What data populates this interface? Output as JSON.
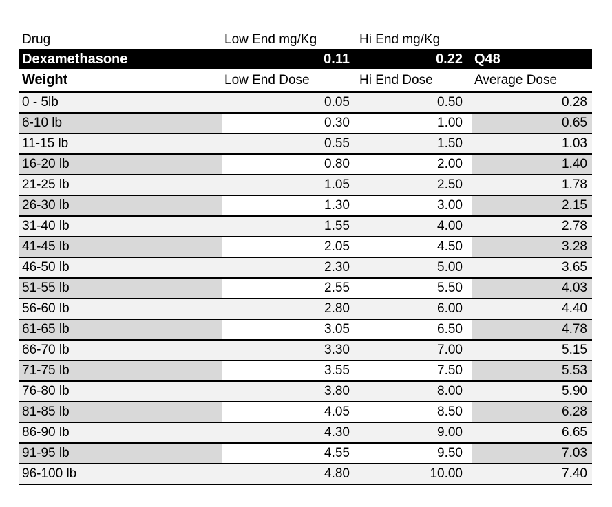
{
  "table": {
    "columns_header": {
      "drug_label": "Drug",
      "low_end_mg_kg_label": "Low End mg/Kg",
      "hi_end_mg_kg_label": "Hi End mg/Kg"
    },
    "drug_row": {
      "name": "Dexamethasone",
      "low_end_mg_kg": "0.11",
      "hi_end_mg_kg": "0.22",
      "frequency": "Q48"
    },
    "dose_header": {
      "weight_label": "Weight",
      "low_end_dose_label": "Low End Dose",
      "hi_end_dose_label": "Hi End Dose",
      "average_dose_label": "Average Dose"
    },
    "rows": [
      {
        "weight": "0 - 5lb",
        "low_end_dose": "0.05",
        "hi_end_dose": "0.50",
        "average_dose": "0.28"
      },
      {
        "weight": "6-10 lb",
        "low_end_dose": "0.30",
        "hi_end_dose": "1.00",
        "average_dose": "0.65"
      },
      {
        "weight": "11-15 lb",
        "low_end_dose": "0.55",
        "hi_end_dose": "1.50",
        "average_dose": "1.03"
      },
      {
        "weight": "16-20 lb",
        "low_end_dose": "0.80",
        "hi_end_dose": "2.00",
        "average_dose": "1.40"
      },
      {
        "weight": "21-25 lb",
        "low_end_dose": "1.05",
        "hi_end_dose": "2.50",
        "average_dose": "1.78"
      },
      {
        "weight": "26-30 lb",
        "low_end_dose": "1.30",
        "hi_end_dose": "3.00",
        "average_dose": "2.15"
      },
      {
        "weight": "31-40 lb",
        "low_end_dose": "1.55",
        "hi_end_dose": "4.00",
        "average_dose": "2.78"
      },
      {
        "weight": "41-45 lb",
        "low_end_dose": "2.05",
        "hi_end_dose": "4.50",
        "average_dose": "3.28"
      },
      {
        "weight": "46-50 lb",
        "low_end_dose": "2.30",
        "hi_end_dose": "5.00",
        "average_dose": "3.65"
      },
      {
        "weight": "51-55 lb",
        "low_end_dose": "2.55",
        "hi_end_dose": "5.50",
        "average_dose": "4.03"
      },
      {
        "weight": "56-60 lb",
        "low_end_dose": "2.80",
        "hi_end_dose": "6.00",
        "average_dose": "4.40"
      },
      {
        "weight": "61-65 lb",
        "low_end_dose": "3.05",
        "hi_end_dose": "6.50",
        "average_dose": "4.78"
      },
      {
        "weight": "66-70 lb",
        "low_end_dose": "3.30",
        "hi_end_dose": "7.00",
        "average_dose": "5.15"
      },
      {
        "weight": "71-75 lb",
        "low_end_dose": "3.55",
        "hi_end_dose": "7.50",
        "average_dose": "5.53"
      },
      {
        "weight": "76-80 lb",
        "low_end_dose": "3.80",
        "hi_end_dose": "8.00",
        "average_dose": "5.90"
      },
      {
        "weight": "81-85 lb",
        "low_end_dose": "4.05",
        "hi_end_dose": "8.50",
        "average_dose": "6.28"
      },
      {
        "weight": "86-90 lb",
        "low_end_dose": "4.30",
        "hi_end_dose": "9.00",
        "average_dose": "6.65"
      },
      {
        "weight": "91-95 lb",
        "low_end_dose": "4.55",
        "hi_end_dose": "9.50",
        "average_dose": "7.03"
      },
      {
        "weight": "96-100 lb",
        "low_end_dose": "4.80",
        "hi_end_dose": "10.00",
        "average_dose": "7.40"
      }
    ]
  },
  "colors": {
    "row_light": "#f2f2f2",
    "row_dark": "#d9d9d9",
    "highlight_bar_bg": "#000000",
    "highlight_bar_text": "#ffffff",
    "grid_line": "#000000"
  }
}
